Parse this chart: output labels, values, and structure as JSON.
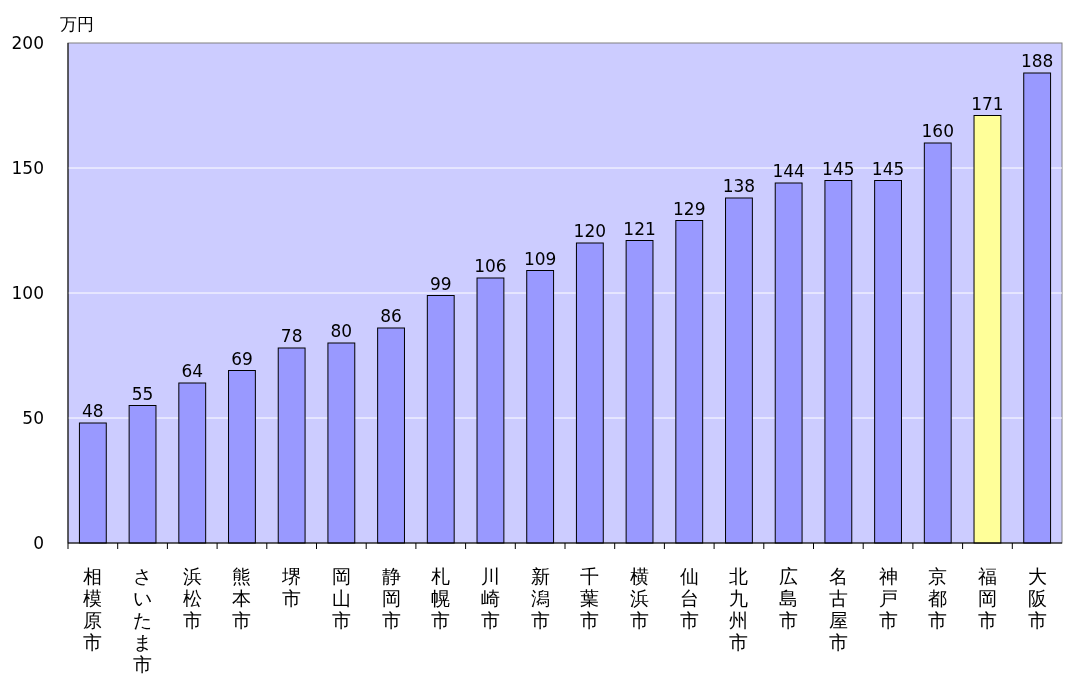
{
  "chart_data": {
    "type": "bar",
    "ylabel": "万円",
    "categories": [
      "相模原市",
      "さいたま市",
      "浜松市",
      "熊本市",
      "堺市",
      "岡山市",
      "静岡市",
      "札幌市",
      "川崎市",
      "新潟市",
      "千葉市",
      "横浜市",
      "仙台市",
      "北九州市",
      "広島市",
      "名古屋市",
      "神戸市",
      "京都市",
      "福岡市",
      "大阪市"
    ],
    "values": [
      48,
      55,
      64,
      69,
      78,
      80,
      86,
      99,
      106,
      109,
      120,
      121,
      129,
      138,
      144,
      145,
      145,
      160,
      171,
      188
    ],
    "colors": [
      "#9999ff",
      "#9999ff",
      "#9999ff",
      "#9999ff",
      "#9999ff",
      "#9999ff",
      "#9999ff",
      "#9999ff",
      "#9999ff",
      "#9999ff",
      "#9999ff",
      "#9999ff",
      "#9999ff",
      "#9999ff",
      "#9999ff",
      "#9999ff",
      "#9999ff",
      "#9999ff",
      "#ffff99",
      "#9999ff"
    ],
    "ylim": [
      0,
      200
    ],
    "yticks": [
      0,
      50,
      100,
      150,
      200
    ],
    "grid": "y",
    "data_labels": true
  }
}
